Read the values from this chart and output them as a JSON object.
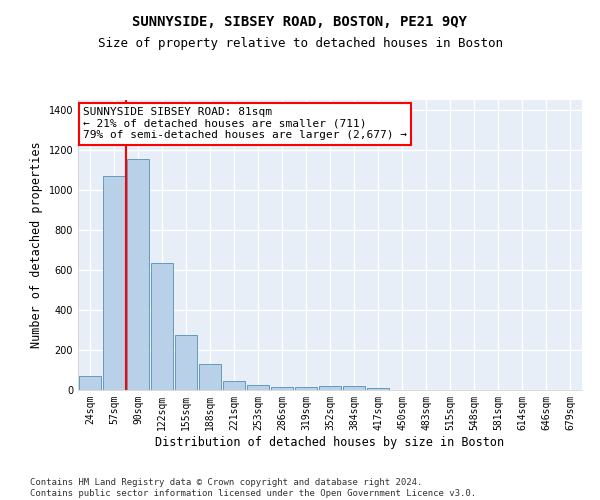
{
  "title": "SUNNYSIDE, SIBSEY ROAD, BOSTON, PE21 9QY",
  "subtitle": "Size of property relative to detached houses in Boston",
  "xlabel": "Distribution of detached houses by size in Boston",
  "ylabel": "Number of detached properties",
  "categories": [
    "24sqm",
    "57sqm",
    "90sqm",
    "122sqm",
    "155sqm",
    "188sqm",
    "221sqm",
    "253sqm",
    "286sqm",
    "319sqm",
    "352sqm",
    "384sqm",
    "417sqm",
    "450sqm",
    "483sqm",
    "515sqm",
    "548sqm",
    "581sqm",
    "614sqm",
    "646sqm",
    "679sqm"
  ],
  "values": [
    68,
    1070,
    1155,
    637,
    275,
    130,
    47,
    27,
    15,
    15,
    20,
    20,
    10,
    0,
    0,
    0,
    0,
    0,
    0,
    0,
    0
  ],
  "bar_color": "#b8d0e8",
  "bar_edge_color": "#6699bb",
  "red_line_x": 1.5,
  "annotation_text": "SUNNYSIDE SIBSEY ROAD: 81sqm\n← 21% of detached houses are smaller (711)\n79% of semi-detached houses are larger (2,677) →",
  "ylim": [
    0,
    1450
  ],
  "yticks": [
    0,
    200,
    400,
    600,
    800,
    1000,
    1200,
    1400
  ],
  "footnote": "Contains HM Land Registry data © Crown copyright and database right 2024.\nContains public sector information licensed under the Open Government Licence v3.0.",
  "background_color": "#e8eef7",
  "grid_color": "#ffffff",
  "title_fontsize": 10,
  "subtitle_fontsize": 9,
  "xlabel_fontsize": 8.5,
  "ylabel_fontsize": 8.5,
  "tick_fontsize": 7,
  "annotation_fontsize": 8,
  "footnote_fontsize": 6.5
}
